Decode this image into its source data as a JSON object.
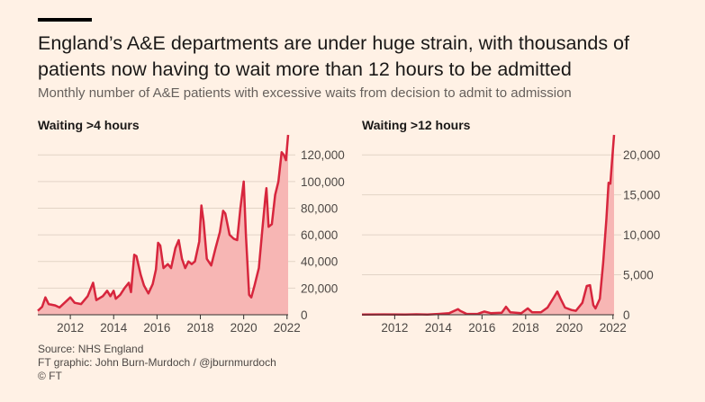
{
  "header": {
    "title": "England’s A&E departments are under huge strain, with thousands of patients now having to wait more than 12 hours to be admitted",
    "subtitle": "Monthly number of A&E patients with excessive waits from decision to admit to admission"
  },
  "footer": {
    "source": "Source: NHS England",
    "credit": "FT graphic: John Burn-Murdoch / @jburnmurdoch",
    "copyright": "© FT"
  },
  "colors": {
    "line": "#d7263d",
    "area": "#f7b6b4",
    "grid": "#e2d4c6",
    "axis": "#33302e",
    "background": "#fff1e5"
  },
  "chart_data": [
    {
      "type": "area",
      "title": "Waiting >4 hours",
      "xlim": [
        2010.5,
        2022.05
      ],
      "ylim": [
        0,
        135000
      ],
      "x_ticks": [
        2012,
        2014,
        2016,
        2018,
        2020,
        2022
      ],
      "y_ticks": [
        0,
        20000,
        40000,
        60000,
        80000,
        100000,
        120000
      ],
      "y_tick_labels": [
        "0",
        "20,000",
        "40,000",
        "60,000",
        "80,000",
        "100,000",
        "120,000"
      ],
      "x_tick_labels": [
        "2012",
        "2014",
        "2016",
        "2018",
        "2020",
        "2022"
      ],
      "series": [
        {
          "points": [
            [
              2010.5,
              3000
            ],
            [
              2010.7,
              6000
            ],
            [
              2010.85,
              13000
            ],
            [
              2011.0,
              8000
            ],
            [
              2011.3,
              7000
            ],
            [
              2011.5,
              5500
            ],
            [
              2011.8,
              10000
            ],
            [
              2012.0,
              13000
            ],
            [
              2012.2,
              9000
            ],
            [
              2012.5,
              8000
            ],
            [
              2012.8,
              14000
            ],
            [
              2012.95,
              20000
            ],
            [
              2013.05,
              24000
            ],
            [
              2013.2,
              11000
            ],
            [
              2013.5,
              14000
            ],
            [
              2013.7,
              18000
            ],
            [
              2013.85,
              14000
            ],
            [
              2014.0,
              18000
            ],
            [
              2014.1,
              12000
            ],
            [
              2014.3,
              15000
            ],
            [
              2014.5,
              20000
            ],
            [
              2014.7,
              24000
            ],
            [
              2014.8,
              17000
            ],
            [
              2014.95,
              45000
            ],
            [
              2015.05,
              44000
            ],
            [
              2015.25,
              30000
            ],
            [
              2015.4,
              22000
            ],
            [
              2015.6,
              16000
            ],
            [
              2015.8,
              23000
            ],
            [
              2015.95,
              34000
            ],
            [
              2016.05,
              54000
            ],
            [
              2016.15,
              52000
            ],
            [
              2016.3,
              35000
            ],
            [
              2016.5,
              38000
            ],
            [
              2016.65,
              35000
            ],
            [
              2016.85,
              50000
            ],
            [
              2017.0,
              56000
            ],
            [
              2017.15,
              42000
            ],
            [
              2017.3,
              35000
            ],
            [
              2017.45,
              40000
            ],
            [
              2017.6,
              38000
            ],
            [
              2017.75,
              40000
            ],
            [
              2017.95,
              55000
            ],
            [
              2018.05,
              82000
            ],
            [
              2018.15,
              70000
            ],
            [
              2018.3,
              42000
            ],
            [
              2018.5,
              37000
            ],
            [
              2018.7,
              50000
            ],
            [
              2018.9,
              62000
            ],
            [
              2019.05,
              78000
            ],
            [
              2019.15,
              76000
            ],
            [
              2019.35,
              60000
            ],
            [
              2019.55,
              57000
            ],
            [
              2019.7,
              56000
            ],
            [
              2019.85,
              80000
            ],
            [
              2020.0,
              100000
            ],
            [
              2020.1,
              60000
            ],
            [
              2020.25,
              15000
            ],
            [
              2020.35,
              13000
            ],
            [
              2020.5,
              22000
            ],
            [
              2020.7,
              35000
            ],
            [
              2020.85,
              62000
            ],
            [
              2021.0,
              88000
            ],
            [
              2021.05,
              95000
            ],
            [
              2021.15,
              66000
            ],
            [
              2021.3,
              68000
            ],
            [
              2021.45,
              90000
            ],
            [
              2021.6,
              100000
            ],
            [
              2021.75,
              122000
            ],
            [
              2021.85,
              120000
            ],
            [
              2021.95,
              116000
            ],
            [
              2022.05,
              135000
            ]
          ]
        }
      ]
    },
    {
      "type": "area",
      "title": "Waiting >12 hours",
      "xlim": [
        2010.5,
        2022.05
      ],
      "ylim": [
        0,
        22500
      ],
      "x_ticks": [
        2012,
        2014,
        2016,
        2018,
        2020,
        2022
      ],
      "y_ticks": [
        0,
        5000,
        10000,
        15000,
        20000
      ],
      "y_tick_labels": [
        "0",
        "5,000",
        "10,000",
        "15,000",
        "20,000"
      ],
      "x_tick_labels": [
        "2012",
        "2014",
        "2016",
        "2018",
        "2020",
        "2022"
      ],
      "series": [
        {
          "points": [
            [
              2010.5,
              20
            ],
            [
              2011.5,
              40
            ],
            [
              2012.5,
              30
            ],
            [
              2013.0,
              60
            ],
            [
              2013.5,
              20
            ],
            [
              2014.0,
              100
            ],
            [
              2014.5,
              200
            ],
            [
              2014.9,
              700
            ],
            [
              2015.0,
              500
            ],
            [
              2015.3,
              100
            ],
            [
              2015.8,
              100
            ],
            [
              2016.1,
              400
            ],
            [
              2016.4,
              200
            ],
            [
              2016.9,
              250
            ],
            [
              2017.1,
              1000
            ],
            [
              2017.3,
              300
            ],
            [
              2017.8,
              200
            ],
            [
              2018.1,
              800
            ],
            [
              2018.3,
              300
            ],
            [
              2018.7,
              300
            ],
            [
              2019.0,
              900
            ],
            [
              2019.3,
              2200
            ],
            [
              2019.45,
              2900
            ],
            [
              2019.6,
              2000
            ],
            [
              2019.8,
              900
            ],
            [
              2020.1,
              600
            ],
            [
              2020.3,
              500
            ],
            [
              2020.6,
              1500
            ],
            [
              2020.8,
              3600
            ],
            [
              2020.95,
              3700
            ],
            [
              2021.1,
              1200
            ],
            [
              2021.2,
              800
            ],
            [
              2021.4,
              2000
            ],
            [
              2021.55,
              6500
            ],
            [
              2021.7,
              12000
            ],
            [
              2021.8,
              16500
            ],
            [
              2021.88,
              16400
            ],
            [
              2021.95,
              19000
            ],
            [
              2022.05,
              22500
            ]
          ]
        }
      ]
    }
  ]
}
